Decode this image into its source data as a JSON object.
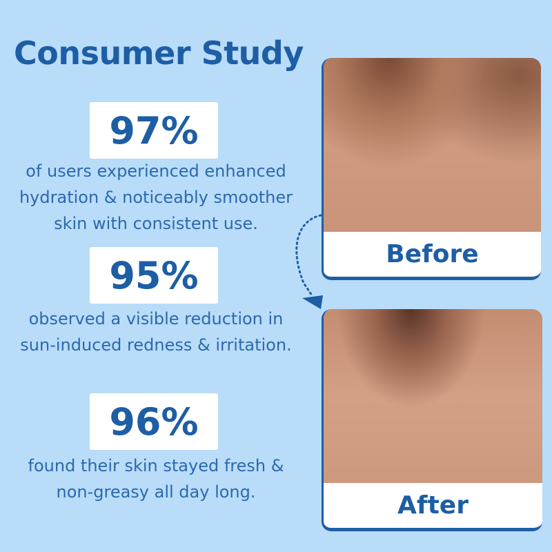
{
  "title": "Consumer Study",
  "stats": [
    {
      "value": "97%",
      "lines": [
        "of users experienced enhanced",
        "hydration & noticeably smoother",
        "skin with consistent use."
      ]
    },
    {
      "value": "95%",
      "lines": [
        "observed a visible reduction in",
        "sun-induced redness & irritation."
      ]
    },
    {
      "value": "96%",
      "lines": [
        "found their skin stayed fresh &",
        "non-greasy all day long."
      ]
    }
  ],
  "before": {
    "label": "Before"
  },
  "after": {
    "label": "After"
  },
  "colors": {
    "background": "#b9dcf9",
    "accent": "#1d5ea5"
  }
}
